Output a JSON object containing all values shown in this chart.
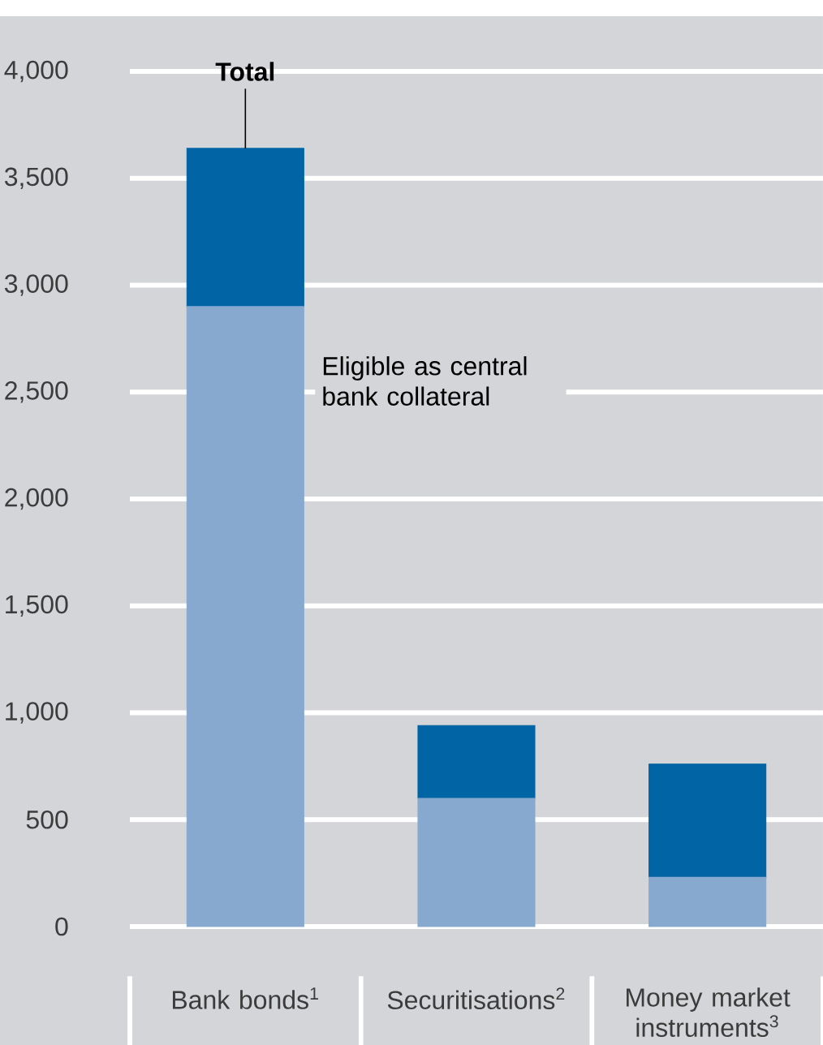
{
  "chart_data": {
    "type": "bar",
    "stacked": true,
    "categories": [
      "Bank bonds$^{1}$",
      "Securitisations$^{2}$",
      "Money market instruments$^{3}$"
    ],
    "series": [
      {
        "name": "Eligible as central bank collateral",
        "color": "#87a9d0",
        "values": [
          2900,
          600,
          230
        ]
      },
      {
        "name": "Total",
        "color": "#0064a5",
        "values": [
          740,
          340,
          530
        ]
      }
    ],
    "ylim": [
      0,
      4000
    ],
    "yticks": [
      {
        "value": 0,
        "label": "0"
      },
      {
        "value": 500,
        "label": "500"
      },
      {
        "value": 1000,
        "label": "1,000"
      },
      {
        "value": 1500,
        "label": "1,500"
      },
      {
        "value": 2000,
        "label": "2,000"
      },
      {
        "value": 2500,
        "label": "2,500"
      },
      {
        "value": 3000,
        "label": "3,000"
      },
      {
        "value": 3500,
        "label": "3,500"
      },
      {
        "value": 4000,
        "label": "4,000"
      }
    ],
    "grid": "y"
  }
}
